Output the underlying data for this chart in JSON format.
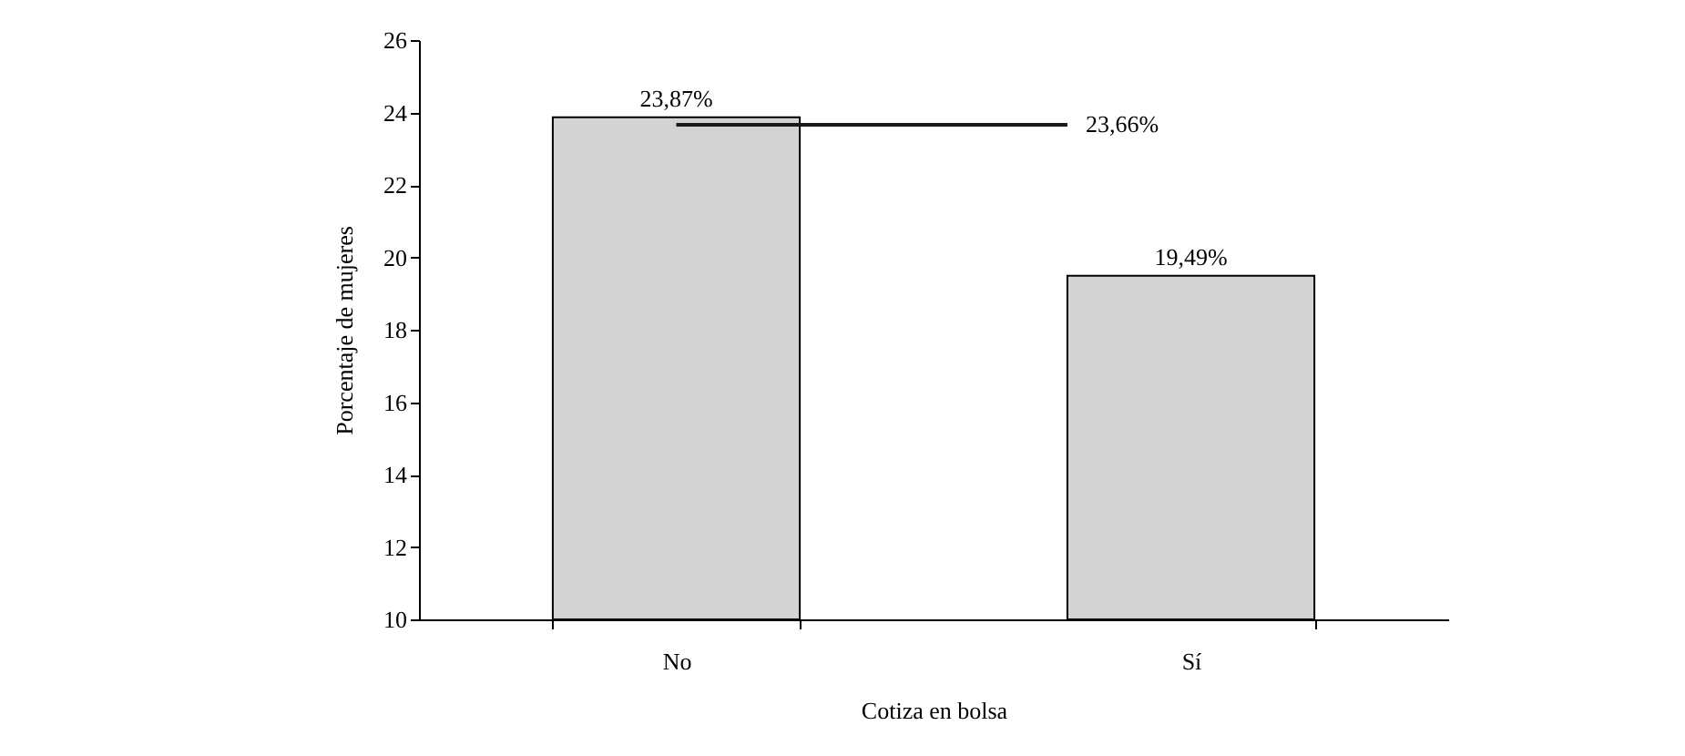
{
  "chart_data": {
    "type": "bar",
    "xlabel": "Cotiza en bolsa",
    "ylabel": "Porcentaje de mujeres",
    "categories": [
      "No",
      "Sí"
    ],
    "values": [
      23.87,
      19.49
    ],
    "value_labels": [
      "23,87%",
      "19,49%"
    ],
    "color": "#d3d3d3",
    "ylim": [
      10,
      26
    ],
    "yticks": [
      10,
      12,
      14,
      16,
      18,
      20,
      22,
      24,
      26
    ],
    "ref_lines": [
      {
        "axis": "y",
        "value": 23.66,
        "label": "23,66%",
        "color": "#1a1a1a"
      }
    ],
    "grid": false
  }
}
